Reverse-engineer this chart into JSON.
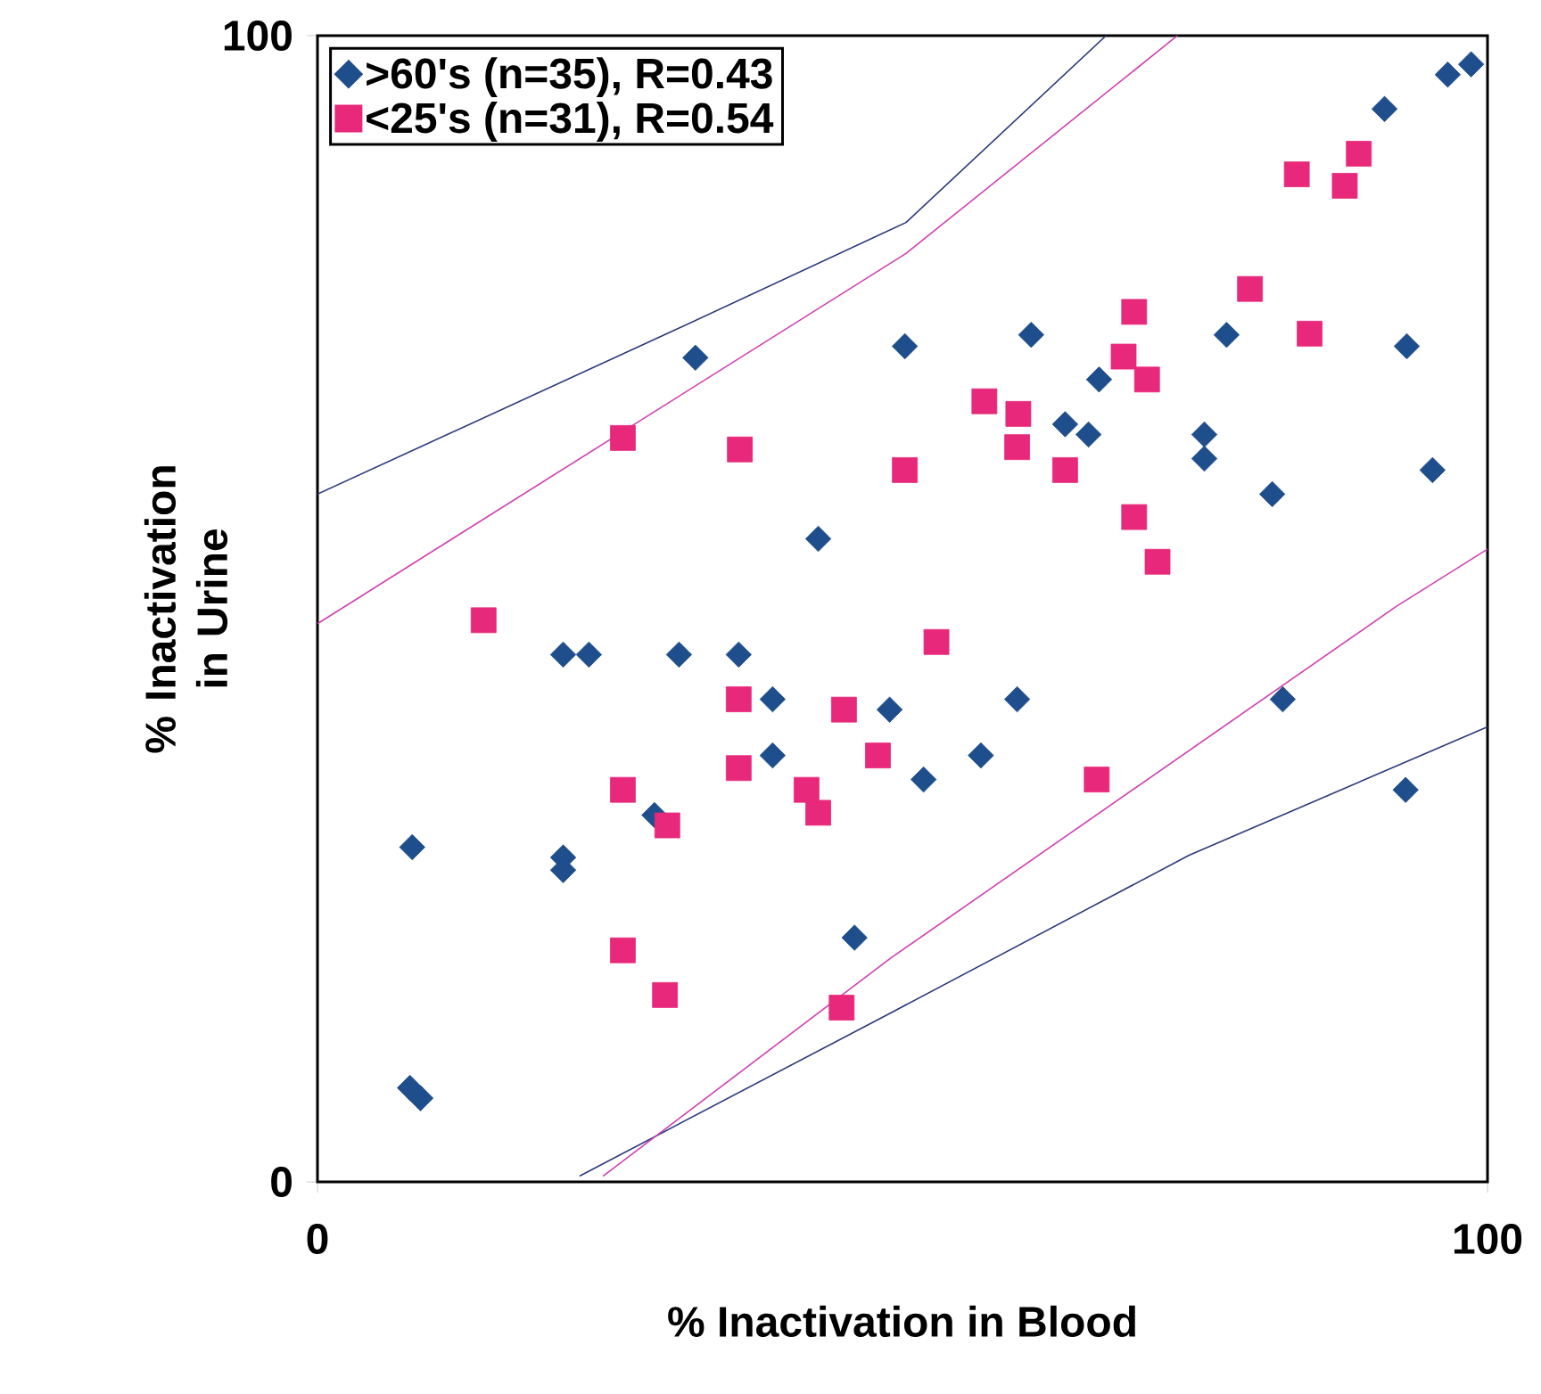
{
  "chart_data": {
    "type": "scatter",
    "xlabel": "% Inactivation in Blood",
    "ylabel": "% Inactivation in Urine",
    "xlim": [
      0,
      100
    ],
    "ylim": [
      0,
      100
    ],
    "xticks": [
      0,
      100
    ],
    "yticks": [
      0,
      100
    ],
    "legend": "top left",
    "series": [
      {
        "name": ">60's (n=35), R=0.43",
        "color": "#1f4e8c",
        "marker": "diamond",
        "x": [
          8.1,
          7.9,
          8.8,
          21.0,
          21.0,
          21.0,
          23.2,
          28.8,
          30.9,
          32.3,
          36.0,
          38.9,
          38.9,
          42.8,
          45.9,
          48.9,
          50.2,
          51.8,
          56.7,
          59.8,
          61.0,
          63.9,
          65.9,
          66.8,
          75.8,
          75.8,
          77.7,
          81.6,
          82.5,
          91.2,
          93.0,
          93.1,
          95.3,
          96.6,
          98.6
        ],
        "values": [
          29.2,
          8.2,
          7.3,
          28.3,
          27.2,
          46.0,
          46.0,
          32.0,
          46.0,
          71.9,
          46.0,
          42.1,
          37.2,
          56.1,
          21.3,
          41.2,
          72.9,
          35.1,
          37.2,
          42.1,
          73.9,
          66.1,
          65.2,
          70.0,
          65.2,
          63.1,
          73.9,
          60.0,
          42.1,
          93.6,
          34.2,
          72.9,
          62.1,
          96.6,
          97.5
        ]
      },
      {
        "name": "<25's (n=31), R=0.54",
        "color": "#e8287a",
        "marker": "square",
        "x": [
          14.2,
          26.1,
          26.1,
          26.1,
          29.9,
          29.7,
          36.1,
          36.0,
          36.0,
          41.8,
          42.8,
          45.0,
          44.8,
          47.9,
          50.2,
          52.9,
          57.0,
          59.9,
          59.8,
          63.9,
          66.6,
          68.9,
          69.8,
          69.8,
          70.9,
          71.8,
          79.7,
          83.7,
          84.8,
          87.8,
          89.0
        ],
        "values": [
          49.0,
          64.9,
          34.2,
          20.2,
          31.1,
          16.3,
          63.9,
          42.1,
          36.1,
          34.2,
          32.2,
          41.2,
          15.2,
          37.2,
          62.1,
          47.1,
          68.1,
          67.0,
          64.1,
          62.1,
          35.1,
          72.0,
          75.9,
          58.0,
          70.0,
          54.1,
          77.9,
          87.9,
          74.0,
          86.9,
          89.7
        ]
      },
      {
        "type": "line",
        "color": "#2b3a7a",
        "marker": "none",
        "line_style": "solid",
        "x": [
          0,
          30.5,
          50.3,
          67.4
        ],
        "values": [
          60,
          74.3,
          83.7,
          100
        ]
      },
      {
        "type": "line",
        "color": "#2b3a7a",
        "marker": "none",
        "line_style": "solid",
        "x": [
          22.4,
          49.1,
          74.5,
          100
        ],
        "values": [
          0.5,
          14.8,
          28.5,
          39.7
        ]
      },
      {
        "type": "line",
        "color": "#d040b0",
        "marker": "none",
        "line_style": "solid",
        "x": [
          0,
          50.3,
          73.5
        ],
        "values": [
          48.7,
          81.0,
          100
        ]
      },
      {
        "type": "line",
        "color": "#d040b0",
        "marker": "none",
        "line_style": "solid",
        "x": [
          24.4,
          49.1,
          92.2,
          100
        ],
        "values": [
          0.5,
          19.6,
          50.2,
          55.2
        ]
      }
    ]
  }
}
